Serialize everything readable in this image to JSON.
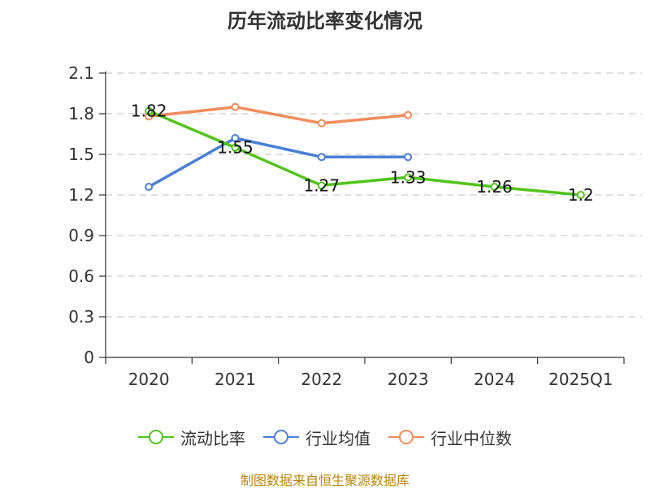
{
  "title": "历年流动比率变化情况",
  "footer": "制图数据来自恒生聚源数据库",
  "chart_data": {
    "type": "line",
    "title": "历年流动比率变化情况",
    "categories": [
      "2020",
      "2021",
      "2022",
      "2023",
      "2024",
      "2025Q1"
    ],
    "ylim": [
      0,
      2.1
    ],
    "yticks": [
      "0",
      "0.3",
      "0.6",
      "0.9",
      "1.2",
      "1.5",
      "1.8",
      "2.1"
    ],
    "grid": true,
    "legend_position": "bottom",
    "series": [
      {
        "name": "流动比率",
        "color": "#52c41a",
        "values": [
          1.82,
          1.55,
          1.27,
          1.33,
          1.26,
          1.2
        ],
        "labels": [
          "1.82",
          "1.55",
          "1.27",
          "1.33",
          "1.26",
          "1.2"
        ]
      },
      {
        "name": "行业均值",
        "color": "#4a7fd4",
        "values": [
          1.26,
          1.62,
          1.48,
          1.48,
          null,
          null
        ]
      },
      {
        "name": "行业中位数",
        "color": "#f28c5a",
        "values": [
          1.78,
          1.85,
          1.73,
          1.79,
          null,
          null
        ]
      }
    ]
  }
}
